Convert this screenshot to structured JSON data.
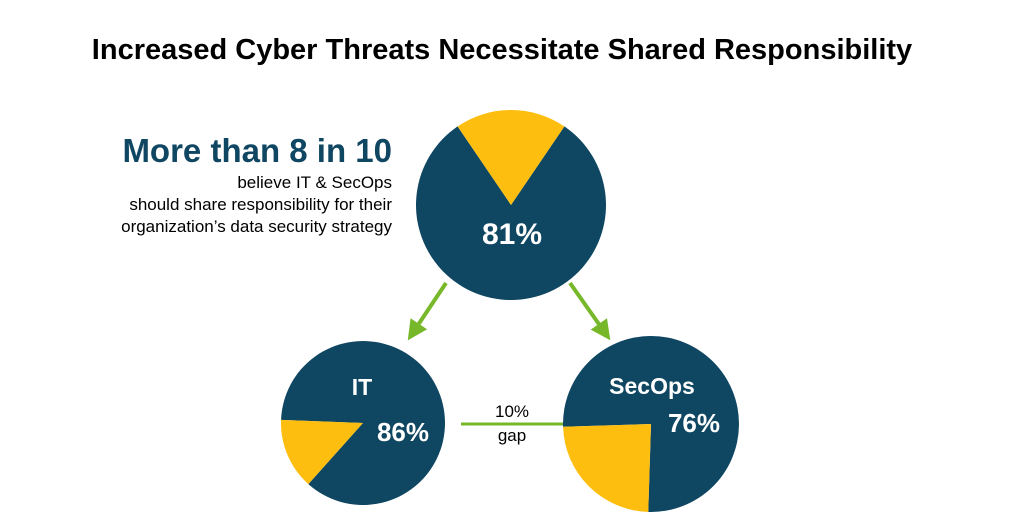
{
  "title": "Increased Cyber Threats Necessitate Shared Responsibility",
  "callout": {
    "headline": "More than 8 in 10",
    "lines": [
      "believe IT & SecOps",
      "should share responsibility for their",
      "organization’s data security strategy"
    ]
  },
  "gap": {
    "line1": "10%",
    "line2": "gap"
  },
  "colors": {
    "navy": "#0f4661",
    "gold": "#fdbe0f",
    "green": "#77b82a"
  },
  "chart_data": [
    {
      "type": "pie",
      "name": "",
      "value": 81,
      "label": "81%"
    },
    {
      "type": "pie",
      "name": "IT",
      "value": 86,
      "label": "86%"
    },
    {
      "type": "pie",
      "name": "SecOps",
      "value": 76,
      "label": "76%"
    }
  ]
}
